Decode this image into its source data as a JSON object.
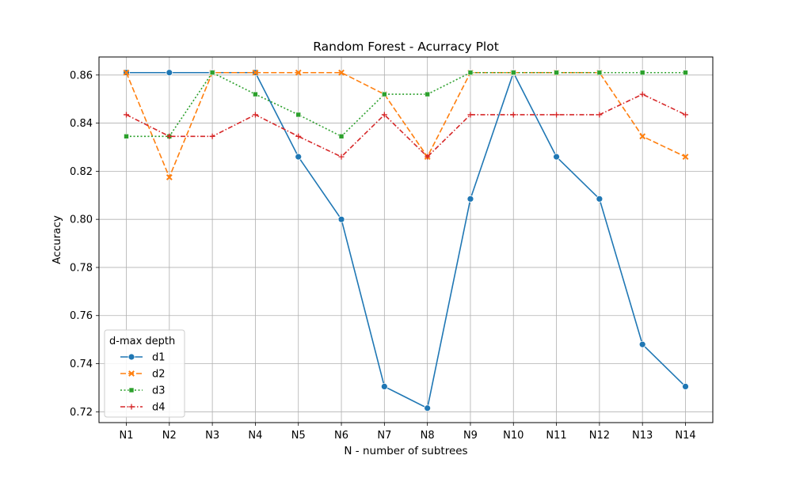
{
  "chart_data": {
    "type": "line",
    "title": "Random Forest - Acurracy Plot",
    "xlabel": "N - number of subtrees",
    "ylabel": "Accuracy",
    "categories": [
      "N1",
      "N2",
      "N3",
      "N4",
      "N5",
      "N6",
      "N7",
      "N8",
      "N9",
      "N10",
      "N11",
      "N12",
      "N13",
      "N14"
    ],
    "yticks": [
      "0.72",
      "0.74",
      "0.76",
      "0.78",
      "0.80",
      "0.82",
      "0.84",
      "0.86"
    ],
    "ylim": [
      0.7155,
      0.8675
    ],
    "grid": true,
    "legend": {
      "title": "d-max depth",
      "placement": "lower-left"
    },
    "series": [
      {
        "name": "d1",
        "color": "#1f77b4",
        "marker": "circle",
        "dash": "solid",
        "values": [
          0.861,
          0.861,
          0.861,
          0.861,
          0.826,
          0.8,
          0.7305,
          0.7215,
          0.8085,
          0.861,
          0.826,
          0.8085,
          0.748,
          0.7305
        ]
      },
      {
        "name": "d2",
        "color": "#ff7f0e",
        "marker": "x",
        "dash": "dashed",
        "values": [
          0.861,
          0.8175,
          0.861,
          0.861,
          0.861,
          0.861,
          0.852,
          0.826,
          0.861,
          0.861,
          0.861,
          0.861,
          0.8345,
          0.826
        ]
      },
      {
        "name": "d3",
        "color": "#2ca02c",
        "marker": "square",
        "dash": "dotted",
        "values": [
          0.8345,
          0.8345,
          0.861,
          0.852,
          0.8435,
          0.8345,
          0.852,
          0.852,
          0.861,
          0.861,
          0.861,
          0.861,
          0.861,
          0.861
        ]
      },
      {
        "name": "d4",
        "color": "#d62728",
        "marker": "plus",
        "dash": "dashdot",
        "values": [
          0.8435,
          0.8345,
          0.8345,
          0.8435,
          0.8345,
          0.826,
          0.8435,
          0.826,
          0.8435,
          0.8435,
          0.8435,
          0.8435,
          0.852,
          0.8435
        ]
      }
    ]
  }
}
